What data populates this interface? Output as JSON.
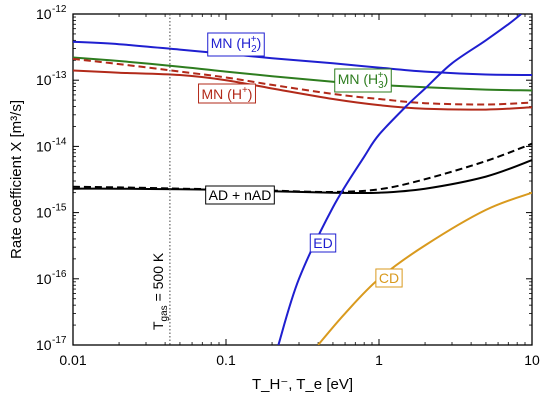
{
  "chart_data": {
    "type": "line",
    "xlabel": "T_H⁻, T_e [eV]",
    "ylabel": "Rate coefficient X [m³/s]",
    "xscale": "log",
    "yscale": "log",
    "xlim": [
      0.01,
      10
    ],
    "ylim": [
      1e-17,
      1e-12
    ],
    "x_ticks": [
      "0.01",
      "0.1",
      "1",
      "10"
    ],
    "y_ticks": [
      {
        "base": "10",
        "exp": "-17"
      },
      {
        "base": "10",
        "exp": "-16"
      },
      {
        "base": "10",
        "exp": "-15"
      },
      {
        "base": "10",
        "exp": "-14"
      },
      {
        "base": "10",
        "exp": "-13"
      },
      {
        "base": "10",
        "exp": "-12"
      }
    ],
    "grid": false,
    "colors": {
      "mn_h2": "#1f1fd0",
      "mn_h3": "#2e7d1f",
      "mn_h": "#b22a1a",
      "ad": "#000000",
      "ed": "#1f1fd0",
      "cd": "#d99a1e"
    },
    "series": [
      {
        "key": "mn_h2",
        "style": "solid",
        "points": [
          [
            0.01,
            3.8e-13
          ],
          [
            0.02,
            3.5e-13
          ],
          [
            0.05,
            2.9e-13
          ],
          [
            0.1,
            2.5e-13
          ],
          [
            0.2,
            2.15e-13
          ],
          [
            0.5,
            1.8e-13
          ],
          [
            1,
            1.55e-13
          ],
          [
            2,
            1.35e-13
          ],
          [
            5,
            1.22e-13
          ],
          [
            10,
            1.2e-13
          ]
        ]
      },
      {
        "key": "mn_h3",
        "style": "solid",
        "points": [
          [
            0.01,
            2.2e-13
          ],
          [
            0.02,
            1.95e-13
          ],
          [
            0.05,
            1.6e-13
          ],
          [
            0.1,
            1.35e-13
          ],
          [
            0.2,
            1.15e-13
          ],
          [
            0.5,
            9.5e-14
          ],
          [
            1,
            8.5e-14
          ],
          [
            2,
            7.8e-14
          ],
          [
            5,
            7.2e-14
          ],
          [
            10,
            7e-14
          ]
        ]
      },
      {
        "key": "mn_h",
        "style": "solid",
        "points": [
          [
            0.01,
            1.4e-13
          ],
          [
            0.02,
            1.3e-13
          ],
          [
            0.05,
            1.2e-13
          ],
          [
            0.1,
            1e-13
          ],
          [
            0.2,
            7.5e-14
          ],
          [
            0.5,
            5.2e-14
          ],
          [
            1,
            4.2e-14
          ],
          [
            2,
            3.7e-14
          ],
          [
            5,
            3.6e-14
          ],
          [
            10,
            3.9e-14
          ]
        ]
      },
      {
        "key": "mn_h",
        "style": "dashed",
        "points": [
          [
            0.01,
            2.1e-13
          ],
          [
            0.02,
            1.75e-13
          ],
          [
            0.05,
            1.35e-13
          ],
          [
            0.1,
            1.1e-13
          ],
          [
            0.2,
            8.5e-14
          ],
          [
            0.5,
            6.2e-14
          ],
          [
            1,
            5.2e-14
          ],
          [
            2,
            4.5e-14
          ],
          [
            5,
            4.3e-14
          ],
          [
            10,
            4.6e-14
          ]
        ]
      },
      {
        "key": "ad",
        "style": "solid",
        "points": [
          [
            0.01,
            2.3e-15
          ],
          [
            0.02,
            2.3e-15
          ],
          [
            0.05,
            2.25e-15
          ],
          [
            0.1,
            2.2e-15
          ],
          [
            0.2,
            2.1e-15
          ],
          [
            0.5,
            2e-15
          ],
          [
            1,
            2e-15
          ],
          [
            2,
            2.3e-15
          ],
          [
            5,
            3.5e-15
          ],
          [
            10,
            6.2e-15
          ]
        ]
      },
      {
        "key": "ad",
        "style": "dashed",
        "points": [
          [
            0.01,
            2.45e-15
          ],
          [
            0.02,
            2.4e-15
          ],
          [
            0.05,
            2.3e-15
          ],
          [
            0.1,
            2.25e-15
          ],
          [
            0.2,
            2.15e-15
          ],
          [
            0.5,
            2.05e-15
          ],
          [
            1,
            2.25e-15
          ],
          [
            2,
            3.2e-15
          ],
          [
            5,
            6e-15
          ],
          [
            10,
            1.1e-14
          ]
        ]
      },
      {
        "key": "ed",
        "style": "solid",
        "points": [
          [
            0.22,
            1e-17
          ],
          [
            0.3,
            1e-16
          ],
          [
            0.5,
            1.2e-15
          ],
          [
            0.8,
            7e-15
          ],
          [
            1,
            1.5e-14
          ],
          [
            1.5,
            4e-14
          ],
          [
            2,
            7.5e-14
          ],
          [
            3,
            1.8e-13
          ],
          [
            5,
            4e-13
          ],
          [
            7,
            7e-13
          ],
          [
            8.5,
            1e-12
          ]
        ]
      },
      {
        "key": "cd",
        "style": "solid",
        "points": [
          [
            0.4,
            1e-17
          ],
          [
            0.6,
            3e-17
          ],
          [
            1,
            1e-16
          ],
          [
            2,
            3.2e-16
          ],
          [
            5,
            1.1e-15
          ],
          [
            10,
            2e-15
          ]
        ]
      }
    ],
    "annotations": {
      "mn_h2": {
        "base": "MN (H",
        "sub": "2",
        "sup": "+",
        "close": ")"
      },
      "mn_h3": {
        "base": "MN (H",
        "sub": "3",
        "sup": "+",
        "close": ")"
      },
      "mn_h": {
        "base": "MN (H",
        "sup": "+",
        "close": ")"
      },
      "ad": "AD + nAD",
      "ed": "ED",
      "cd": "CD",
      "tgas": {
        "text1": "T",
        "sub": "gas",
        "text2": " = 500 K",
        "x": 0.043
      }
    }
  }
}
